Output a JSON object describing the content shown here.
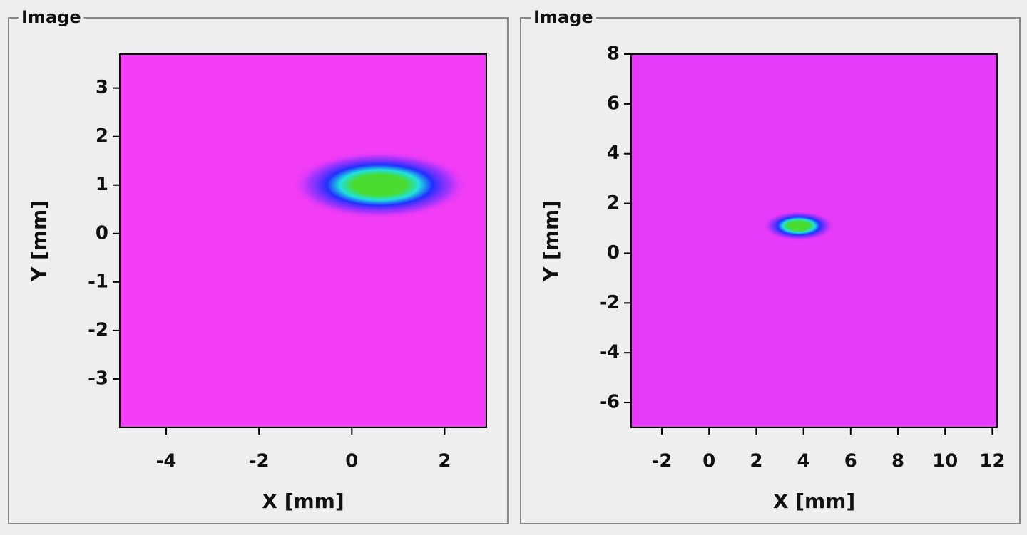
{
  "chart_data": [
    {
      "type": "heatmap",
      "panel_title": "Image",
      "x_label": "X [mm]",
      "y_label": "Y [mm]",
      "xlim": [
        -5,
        2.9
      ],
      "ylim": [
        -4,
        3.7
      ],
      "xticks": [
        -4,
        -2,
        0,
        2
      ],
      "yticks": [
        -3,
        -2,
        -1,
        0,
        1,
        2,
        3
      ],
      "background_color": "#f23cf6",
      "spot": {
        "x": 0.6,
        "y": 1.0,
        "rx": 1.9,
        "ry": 0.7
      },
      "spot_colors": [
        "#48dc30",
        "#20e0e0",
        "#2030ff",
        "#7030ff"
      ]
    },
    {
      "type": "heatmap",
      "panel_title": "Image",
      "x_label": "X [mm]",
      "y_label": "Y [mm]",
      "xlim": [
        -3.3,
        12.2
      ],
      "ylim": [
        -7,
        8
      ],
      "xticks": [
        -2,
        0,
        2,
        4,
        6,
        8,
        10,
        12
      ],
      "yticks": [
        -6,
        -4,
        -2,
        0,
        2,
        4,
        6,
        8
      ],
      "background_color": "#e63af8",
      "spot": {
        "x": 3.8,
        "y": 1.1,
        "rx": 1.5,
        "ry": 0.6
      },
      "spot_colors": [
        "#48dc30",
        "#20e0e0",
        "#2030ff",
        "#7030ff"
      ]
    }
  ]
}
